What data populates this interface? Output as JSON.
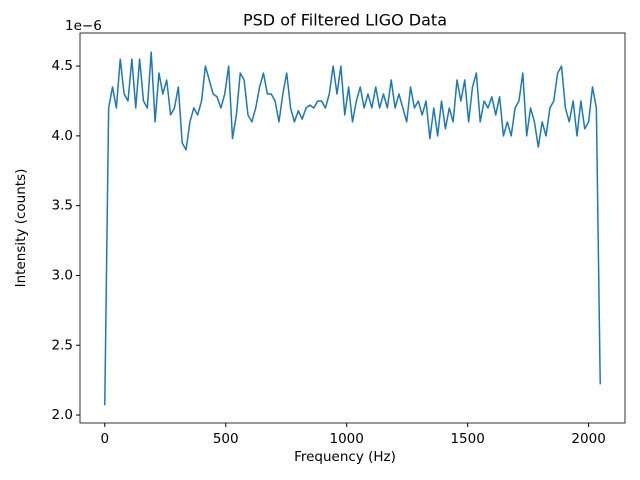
{
  "chart_data": {
    "type": "line",
    "title": "PSD of Filtered LIGO Data",
    "xlabel": "Frequency (Hz)",
    "ylabel": "Intensity (counts)",
    "y_offset_label": "1e−6",
    "x": [
      0,
      16,
      32,
      48,
      64,
      80,
      96,
      112,
      128,
      144,
      160,
      176,
      192,
      208,
      224,
      240,
      256,
      272,
      288,
      304,
      320,
      336,
      352,
      368,
      384,
      400,
      416,
      432,
      448,
      464,
      480,
      496,
      512,
      528,
      544,
      560,
      576,
      592,
      608,
      624,
      640,
      656,
      672,
      688,
      704,
      720,
      736,
      752,
      768,
      784,
      800,
      816,
      832,
      848,
      864,
      880,
      896,
      912,
      928,
      944,
      960,
      976,
      992,
      1008,
      1024,
      1040,
      1056,
      1072,
      1088,
      1104,
      1120,
      1136,
      1152,
      1168,
      1184,
      1200,
      1216,
      1232,
      1248,
      1264,
      1280,
      1296,
      1312,
      1328,
      1344,
      1360,
      1376,
      1392,
      1408,
      1424,
      1440,
      1456,
      1472,
      1488,
      1504,
      1520,
      1536,
      1552,
      1568,
      1584,
      1600,
      1616,
      1632,
      1648,
      1664,
      1680,
      1696,
      1712,
      1728,
      1744,
      1760,
      1776,
      1792,
      1808,
      1824,
      1840,
      1856,
      1872,
      1888,
      1904,
      1920,
      1936,
      1952,
      1968,
      1984,
      2000,
      2016,
      2032,
      2048
    ],
    "series": [
      {
        "color": "#1f77b4",
        "values": [
          2.07,
          4.2,
          4.35,
          4.2,
          4.55,
          4.3,
          4.25,
          4.55,
          4.2,
          4.55,
          4.25,
          4.2,
          4.6,
          4.1,
          4.45,
          4.3,
          4.4,
          4.15,
          4.2,
          4.35,
          3.95,
          3.9,
          4.1,
          4.2,
          4.15,
          4.25,
          4.5,
          4.4,
          4.3,
          4.28,
          4.2,
          4.3,
          4.5,
          3.98,
          4.15,
          4.45,
          4.4,
          4.15,
          4.1,
          4.2,
          4.35,
          4.45,
          4.3,
          4.3,
          4.25,
          4.1,
          4.3,
          4.45,
          4.2,
          4.1,
          4.18,
          4.12,
          4.2,
          4.22,
          4.2,
          4.25,
          4.25,
          4.2,
          4.3,
          4.5,
          4.3,
          4.5,
          4.15,
          4.35,
          4.1,
          4.25,
          4.35,
          4.2,
          4.3,
          4.2,
          4.35,
          4.2,
          4.3,
          4.2,
          4.4,
          4.2,
          4.3,
          4.2,
          4.1,
          4.35,
          4.2,
          4.25,
          4.15,
          4.25,
          3.98,
          4.2,
          4.0,
          4.25,
          4.05,
          4.2,
          4.1,
          4.4,
          4.25,
          4.4,
          4.1,
          4.35,
          4.45,
          4.1,
          4.25,
          4.2,
          4.28,
          4.15,
          4.28,
          4.0,
          4.1,
          4.0,
          4.2,
          4.25,
          4.45,
          4.0,
          4.2,
          4.1,
          3.92,
          4.1,
          4.0,
          4.2,
          4.25,
          4.45,
          4.5,
          4.2,
          4.1,
          4.25,
          4.0,
          4.25,
          4.05,
          4.1,
          4.35,
          4.2,
          2.22
        ]
      }
    ],
    "xlim": [
      -102.4,
      2150.4
    ],
    "xticks": [
      0,
      500,
      1000,
      1500,
      2000
    ],
    "ylim": [
      1.943,
      4.737
    ],
    "yticks": [
      {
        "value": 2,
        "label": "2.0"
      },
      2.5,
      {
        "value": 3,
        "label": "3.0"
      },
      3.5,
      {
        "value": 4,
        "label": "4.0"
      },
      4.5
    ],
    "grid": false
  }
}
